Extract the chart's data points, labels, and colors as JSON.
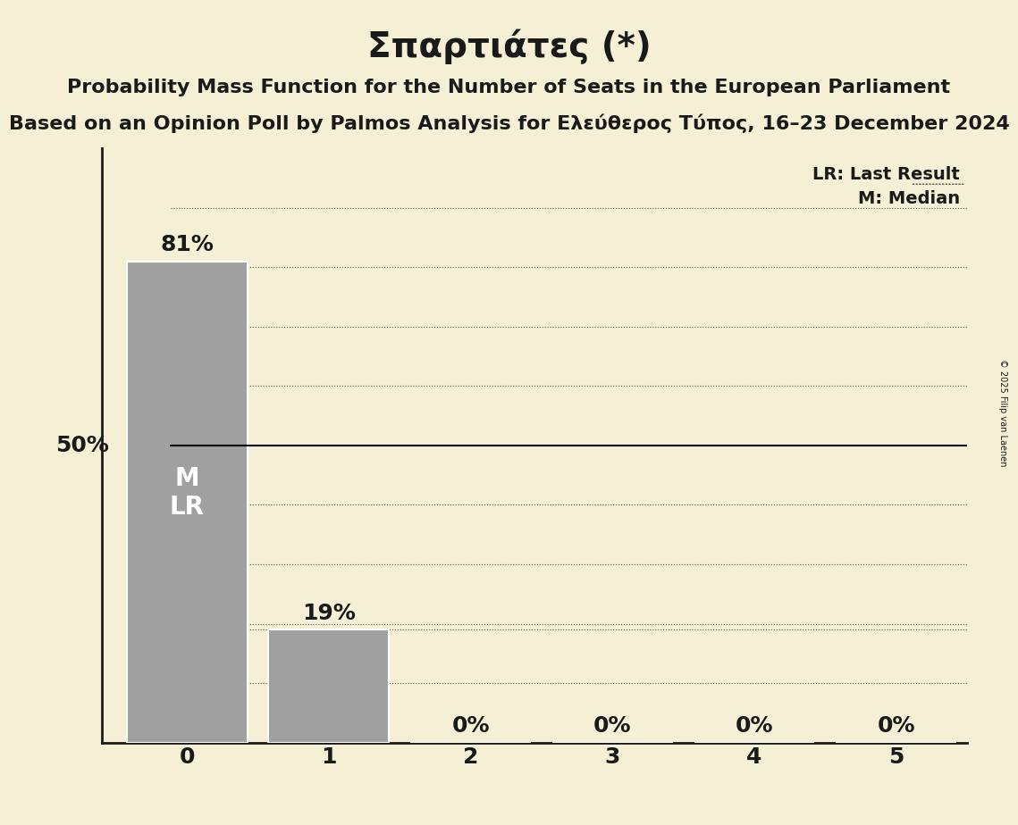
{
  "title": "Σπαρτιάτες (*)",
  "subtitle1": "Probability Mass Function for the Number of Seats in the European Parliament",
  "subtitle2": "Based on an Opinion Poll by Palmos Analysis for Ελεύθερος Τύπος, 16–23 December 2024",
  "copyright": "© 2025 Filip van Laenen",
  "categories": [
    0,
    1,
    2,
    3,
    4,
    5
  ],
  "values": [
    0.81,
    0.19,
    0.0,
    0.0,
    0.0,
    0.0
  ],
  "bar_color": "#a0a0a0",
  "bar_edge_color": "#ffffff",
  "background_color": "#f5f0d5",
  "text_color": "#1a1a1a",
  "bar_label_color_inside": "#ffffff",
  "bar_label_color_outside": "#1a1a1a",
  "fifty_pct_line_color": "#000000",
  "dotted_line_color": "#555555",
  "median_seat": 0,
  "last_result_seat": 0,
  "legend_lr": "LR: Last Result",
  "legend_m": "M: Median",
  "ylim": [
    0,
    1.0
  ],
  "ylabel_50pct": "50%",
  "title_fontsize": 28,
  "subtitle_fontsize": 16,
  "bar_label_fontsize": 18,
  "axis_label_fontsize": 18,
  "legend_fontsize": 14,
  "inside_label_fontsize": 20
}
